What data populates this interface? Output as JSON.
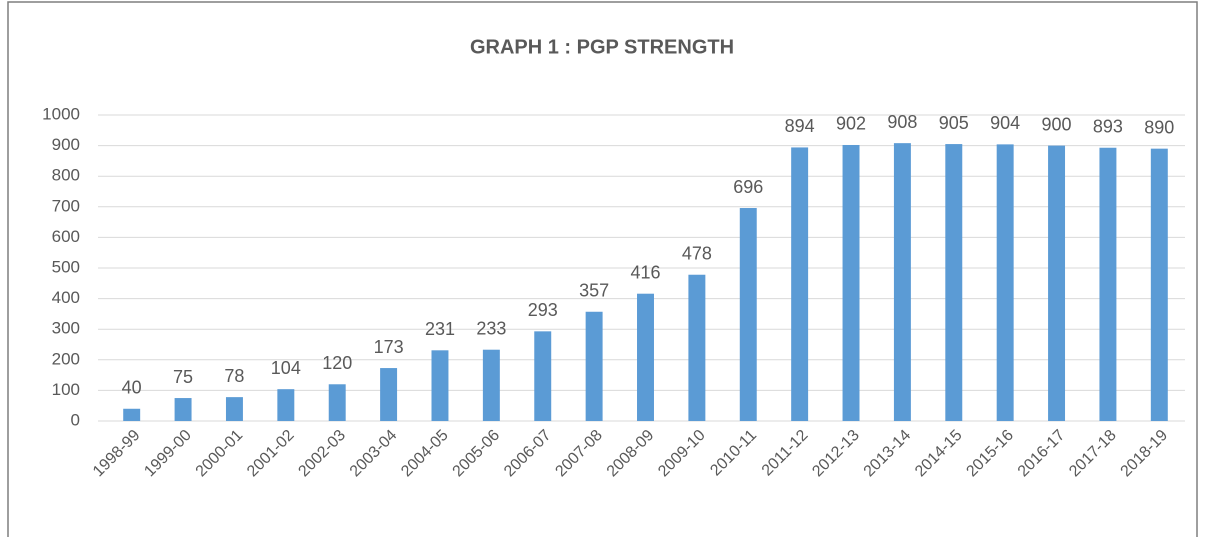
{
  "chart_data": {
    "type": "bar",
    "title": "GRAPH 1 : PGP STRENGTH",
    "categories": [
      "1998-99",
      "1999-00",
      "2000-01",
      "2001-02",
      "2002-03",
      "2003-04",
      "2004-05",
      "2005-06",
      "2006-07",
      "2007-08",
      "2008-09",
      "2009-10",
      "2010-11",
      "2011-12",
      "2012-13",
      "2013-14",
      "2014-15",
      "2015-16",
      "2016-17",
      "2017-18",
      "2018-19"
    ],
    "values": [
      40,
      75,
      78,
      104,
      120,
      173,
      231,
      233,
      293,
      357,
      416,
      478,
      696,
      894,
      902,
      908,
      905,
      904,
      900,
      893,
      890
    ],
    "color": "#5b9bd5",
    "ylim": [
      0,
      1000
    ],
    "yticks": [
      0,
      100,
      200,
      300,
      400,
      500,
      600,
      700,
      800,
      900,
      1000
    ],
    "grid": true
  }
}
